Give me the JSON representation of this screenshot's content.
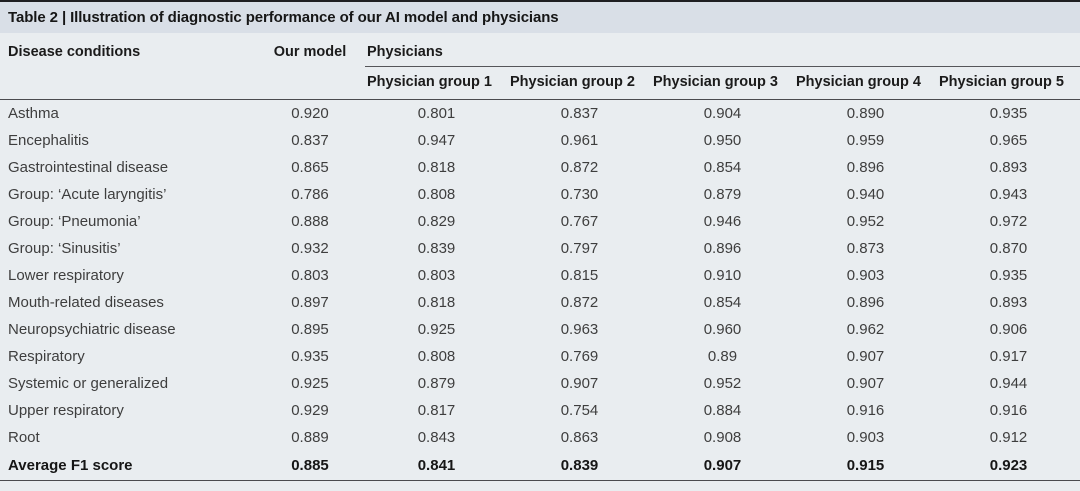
{
  "title": "Table 2 | Illustration of diagnostic performance of our AI model and physicians",
  "colors": {
    "title_band_bg": "#d9dfe7",
    "table_body_bg": "#e9edf0",
    "top_border": "#1f1f21",
    "rule_line": "#4a4b4e",
    "data_text": "#3e3e3e",
    "bold_text": "#161616"
  },
  "table": {
    "condition_header": "Disease conditions",
    "our_model_header": "Our model",
    "physicians_header": "Physicians",
    "group_headers": [
      "Physician group 1",
      "Physician group 2",
      "Physician group 3",
      "Physician group 4",
      "Physician group 5"
    ],
    "rows": [
      {
        "condition": "Asthma",
        "values": [
          "0.920",
          "0.801",
          "0.837",
          "0.904",
          "0.890",
          "0.935"
        ]
      },
      {
        "condition": "Encephalitis",
        "values": [
          "0.837",
          "0.947",
          "0.961",
          "0.950",
          "0.959",
          "0.965"
        ]
      },
      {
        "condition": "Gastrointestinal disease",
        "values": [
          "0.865",
          "0.818",
          "0.872",
          "0.854",
          "0.896",
          "0.893"
        ]
      },
      {
        "condition": "Group: ‘Acute laryngitis’",
        "values": [
          "0.786",
          "0.808",
          "0.730",
          "0.879",
          "0.940",
          "0.943"
        ]
      },
      {
        "condition": "Group: ‘Pneumonia’",
        "values": [
          "0.888",
          "0.829",
          "0.767",
          "0.946",
          "0.952",
          "0.972"
        ]
      },
      {
        "condition": "Group: ‘Sinusitis’",
        "values": [
          "0.932",
          "0.839",
          "0.797",
          "0.896",
          "0.873",
          "0.870"
        ]
      },
      {
        "condition": "Lower respiratory",
        "values": [
          "0.803",
          "0.803",
          "0.815",
          "0.910",
          "0.903",
          "0.935"
        ]
      },
      {
        "condition": "Mouth-related diseases",
        "values": [
          "0.897",
          "0.818",
          "0.872",
          "0.854",
          "0.896",
          "0.893"
        ]
      },
      {
        "condition": "Neuropsychiatric disease",
        "values": [
          "0.895",
          "0.925",
          "0.963",
          "0.960",
          "0.962",
          "0.906"
        ]
      },
      {
        "condition": "Respiratory",
        "values": [
          "0.935",
          "0.808",
          "0.769",
          "0.89",
          "0.907",
          "0.917"
        ]
      },
      {
        "condition": "Systemic or generalized",
        "values": [
          "0.925",
          "0.879",
          "0.907",
          "0.952",
          "0.907",
          "0.944"
        ]
      },
      {
        "condition": "Upper respiratory",
        "values": [
          "0.929",
          "0.817",
          "0.754",
          "0.884",
          "0.916",
          "0.916"
        ]
      },
      {
        "condition": "Root",
        "values": [
          "0.889",
          "0.843",
          "0.863",
          "0.908",
          "0.903",
          "0.912"
        ]
      }
    ],
    "footer_row": {
      "condition": "Average F1 score",
      "values": [
        "0.885",
        "0.841",
        "0.839",
        "0.907",
        "0.915",
        "0.923"
      ]
    }
  }
}
